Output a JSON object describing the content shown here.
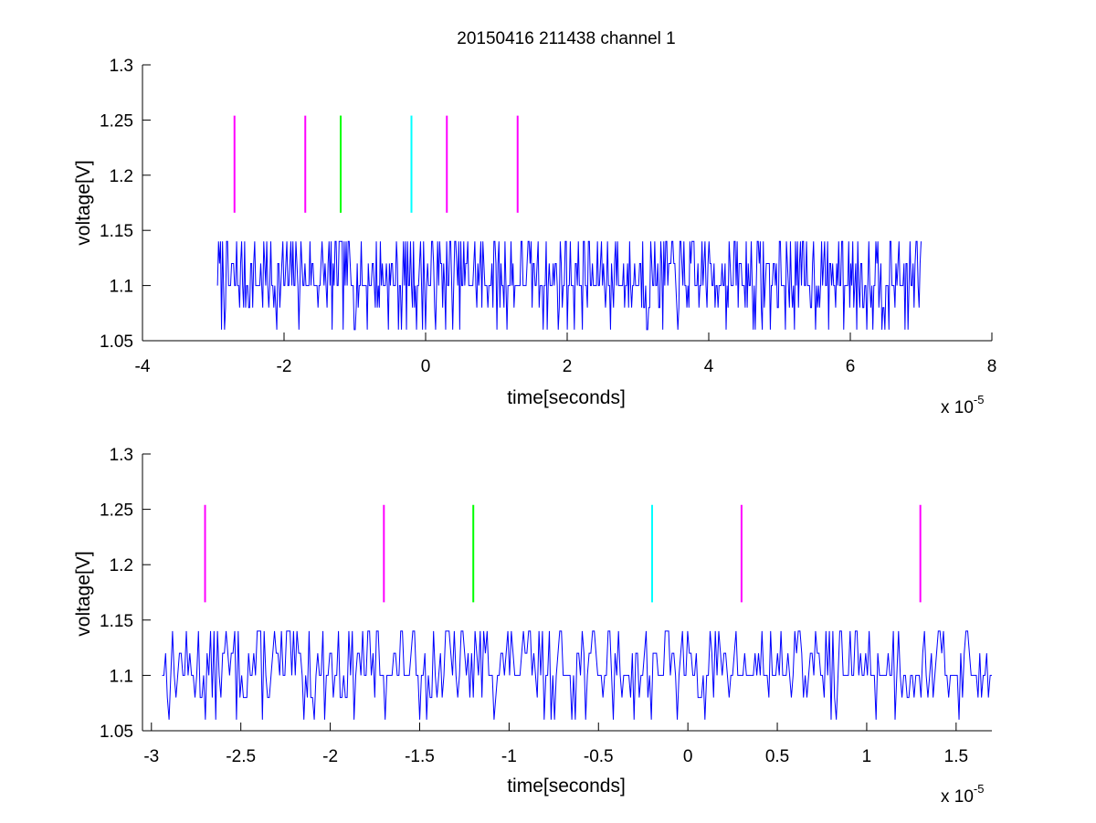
{
  "figure": {
    "title": "20150416 211438 channel 1"
  },
  "colors": {
    "signal": "#0000ff",
    "magenta": "#ff00ff",
    "green": "#00ff00",
    "cyan": "#00ffff",
    "axis": "#000000"
  },
  "chart_data": [
    {
      "type": "line",
      "title": "20150416 211438 channel 1",
      "xlabel": "time[seconds]",
      "ylabel": "voltage[V]",
      "x_exponent_label": "x 10",
      "x_exponent": "-5",
      "x_scale": 1e-05,
      "xlim": [
        -4,
        8
      ],
      "ylim": [
        1.05,
        1.3
      ],
      "xticks": [
        -4,
        -2,
        0,
        2,
        4,
        6,
        8
      ],
      "xtick_labels": [
        "-4",
        "-2",
        "0",
        "2",
        "4",
        "6",
        "8"
      ],
      "yticks": [
        1.05,
        1.1,
        1.15,
        1.2,
        1.25,
        1.3
      ],
      "ytick_labels": [
        "1.05",
        "1.1",
        "1.15",
        "1.2",
        "1.25",
        "1.3"
      ],
      "grid": false,
      "signal": {
        "x_start": -2.94,
        "x_end": 7.0,
        "levels": [
          1.06,
          1.08,
          1.1,
          1.12,
          1.14
        ],
        "baseline": 1.1
      },
      "markers": [
        {
          "x": -2.7,
          "y_from": 1.166,
          "y_to": 1.254,
          "color": "magenta"
        },
        {
          "x": -1.7,
          "y_from": 1.166,
          "y_to": 1.254,
          "color": "magenta"
        },
        {
          "x": -1.2,
          "y_from": 1.166,
          "y_to": 1.254,
          "color": "green"
        },
        {
          "x": -0.2,
          "y_from": 1.166,
          "y_to": 1.254,
          "color": "cyan"
        },
        {
          "x": 0.3,
          "y_from": 1.166,
          "y_to": 1.254,
          "color": "magenta"
        },
        {
          "x": 1.3,
          "y_from": 1.166,
          "y_to": 1.254,
          "color": "magenta"
        }
      ]
    },
    {
      "type": "line",
      "xlabel": "time[seconds]",
      "ylabel": "voltage[V]",
      "x_exponent_label": "x 10",
      "x_exponent": "-5",
      "x_scale": 1e-05,
      "xlim": [
        -3.05,
        1.7
      ],
      "ylim": [
        1.05,
        1.3
      ],
      "xticks": [
        -3,
        -2.5,
        -2,
        -1.5,
        -1,
        -0.5,
        0,
        0.5,
        1,
        1.5
      ],
      "xtick_labels": [
        "-3",
        "-2.5",
        "-2",
        "-1.5",
        "-1",
        "-0.5",
        "0",
        "0.5",
        "1",
        "1.5"
      ],
      "yticks": [
        1.05,
        1.1,
        1.15,
        1.2,
        1.25,
        1.3
      ],
      "ytick_labels": [
        "1.05",
        "1.1",
        "1.15",
        "1.2",
        "1.25",
        "1.3"
      ],
      "grid": false,
      "signal": {
        "x_start": -2.94,
        "x_end": 1.7,
        "levels": [
          1.06,
          1.08,
          1.1,
          1.12,
          1.14
        ],
        "baseline": 1.1
      },
      "markers": [
        {
          "x": -2.7,
          "y_from": 1.166,
          "y_to": 1.254,
          "color": "magenta"
        },
        {
          "x": -1.7,
          "y_from": 1.166,
          "y_to": 1.254,
          "color": "magenta"
        },
        {
          "x": -1.2,
          "y_from": 1.166,
          "y_to": 1.254,
          "color": "green"
        },
        {
          "x": -0.2,
          "y_from": 1.166,
          "y_to": 1.254,
          "color": "cyan"
        },
        {
          "x": 0.3,
          "y_from": 1.166,
          "y_to": 1.254,
          "color": "magenta"
        },
        {
          "x": 1.3,
          "y_from": 1.166,
          "y_to": 1.254,
          "color": "magenta"
        }
      ]
    }
  ]
}
